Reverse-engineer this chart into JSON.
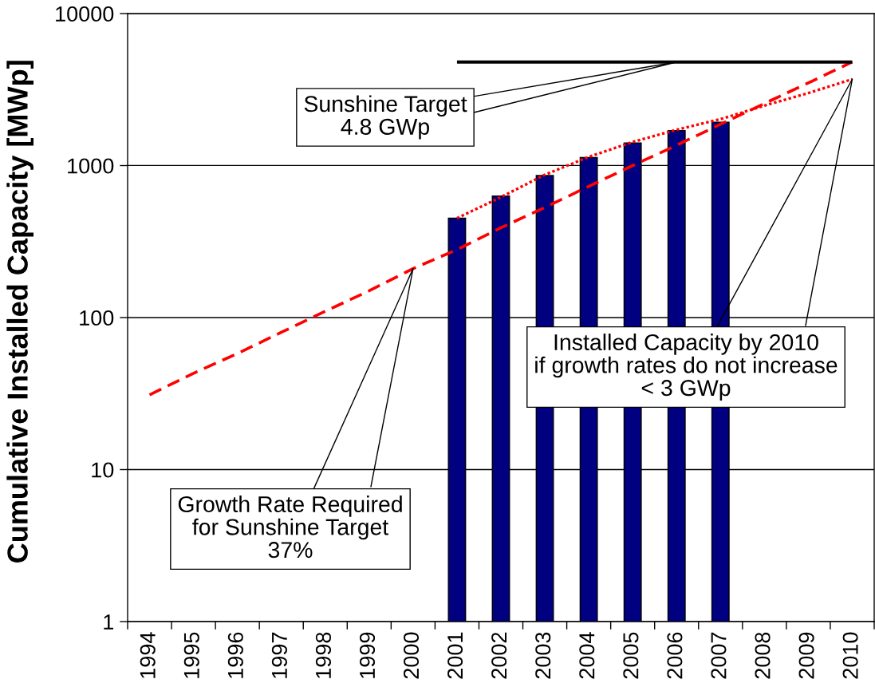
{
  "chart_data": {
    "type": "bar",
    "ylabel": "Cumulative Installed Capacity [MWp]",
    "categories": [
      "1994",
      "1995",
      "1996",
      "1997",
      "1998",
      "1999",
      "2000",
      "2001",
      "2002",
      "2003",
      "2004",
      "2005",
      "2006",
      "2007",
      "2008",
      "2009",
      "2010"
    ],
    "series": [
      {
        "color": "#000080",
        "values": [
          null,
          null,
          null,
          null,
          null,
          null,
          null,
          450,
          630,
          860,
          1130,
          1410,
          1700,
          1930,
          null,
          null,
          null
        ]
      },
      {
        "type": "line",
        "color": "#ff0000",
        "line_style": "dashed",
        "values": [
          31,
          43,
          58,
          80,
          110,
          150,
          210,
          280,
          390,
          530,
          730,
          1000,
          1360,
          1870,
          2560,
          3500,
          4800
        ]
      },
      {
        "type": "line",
        "color": "#ff0000",
        "line_style": "dotted",
        "values": [
          null,
          null,
          null,
          null,
          null,
          null,
          null,
          450,
          620,
          870,
          1140,
          1430,
          1720,
          2020,
          2480,
          3000,
          3700
        ]
      },
      {
        "type": "line",
        "color": "#000000",
        "line_style": "solid",
        "values": [
          null,
          null,
          null,
          null,
          null,
          null,
          null,
          4800,
          4800,
          4800,
          4800,
          4800,
          4800,
          4800,
          4800,
          4800,
          4800
        ]
      }
    ],
    "ylim": [
      1,
      10000
    ],
    "yticks": [
      1,
      10,
      100,
      1000,
      10000
    ],
    "log": "y",
    "grid": "y",
    "annotations": [
      {
        "text": "Sunshine Target\n4.8 GWp",
        "x": "2006",
        "y": 4800
      },
      {
        "text": "Installed Capacity by 2010\nif growth rates do not increase\n< 3 GWp",
        "x": "2010",
        "y": 3700
      },
      {
        "text": "Growth Rate Required\nfor Sunshine Target\n37%",
        "x": "2000",
        "y": 210
      }
    ]
  }
}
